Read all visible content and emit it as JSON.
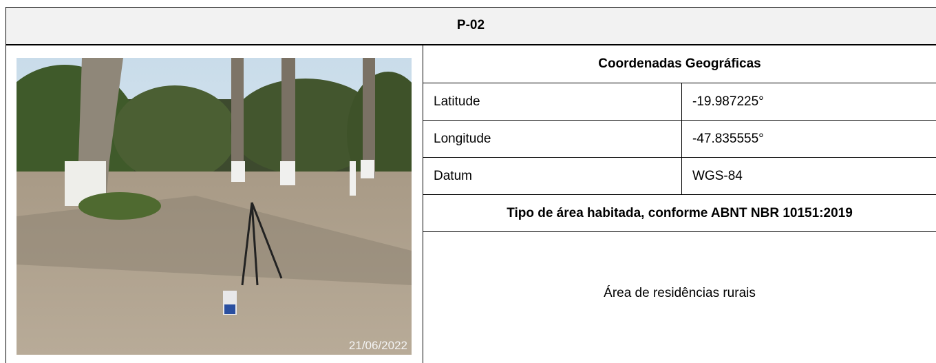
{
  "header": {
    "title": "P-02"
  },
  "photo": {
    "date_stamp": "21/06/2022"
  },
  "coordinates": {
    "title": "Coordenadas Geográficas",
    "rows": [
      [
        "Latitude",
        "-19.987225°"
      ],
      [
        "Longitude",
        "-47.835555°"
      ],
      [
        "Datum",
        "WGS-84"
      ]
    ]
  },
  "area_type": {
    "title": "Tipo de área habitada, conforme ABNT NBR 10151:2019",
    "value": "Área de residências rurais"
  }
}
